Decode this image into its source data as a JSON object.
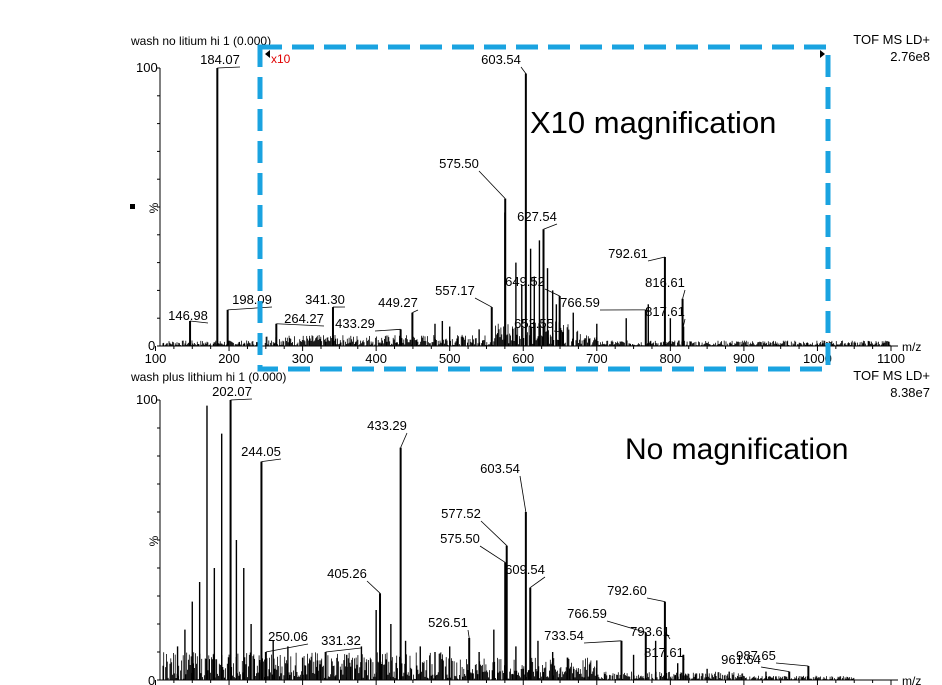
{
  "colors": {
    "spectrum": "#000000",
    "magnify_box": "#1aa3e0",
    "magnify_label": "#e00000"
  },
  "chart_data": [
    {
      "type": "line",
      "title": "wash no litium hi 1 (0.000)",
      "instrument": "TOF MS LD+",
      "intensity": "2.76e8",
      "xlabel": "m/z",
      "ylabel": "%",
      "xlim": [
        100,
        1100
      ],
      "ylim": [
        0,
        100
      ],
      "x_ticks": [
        "100",
        "200",
        "300",
        "400",
        "500",
        "600",
        "700",
        "800",
        "900",
        "1000",
        "1100"
      ],
      "y_ticks": [
        "0",
        "100"
      ],
      "magnification": {
        "range": [
          250,
          1100
        ],
        "factor_label": "x10"
      },
      "annotation": "X10 magnification",
      "peaks": [
        {
          "x": 146.98,
          "y": 9,
          "label": "146.98"
        },
        {
          "x": 184.07,
          "y": 100,
          "label": "184.07"
        },
        {
          "x": 198.09,
          "y": 13,
          "label": "198.09"
        },
        {
          "x": 264.27,
          "y": 8,
          "label": "264.27"
        },
        {
          "x": 341.3,
          "y": 14,
          "label": "341.30"
        },
        {
          "x": 433.29,
          "y": 6,
          "label": "433.29"
        },
        {
          "x": 449.27,
          "y": 12,
          "label": "449.27"
        },
        {
          "x": 557.17,
          "y": 14,
          "label": "557.17"
        },
        {
          "x": 575.5,
          "y": 53,
          "label": "575.50"
        },
        {
          "x": 603.54,
          "y": 98,
          "label": "603.54"
        },
        {
          "x": 627.54,
          "y": 42,
          "label": "627.54"
        },
        {
          "x": 649.52,
          "y": 18,
          "label": "649.52"
        },
        {
          "x": 653.55,
          "y": 5,
          "label": "653.55"
        },
        {
          "x": 766.59,
          "y": 13,
          "label": "766.59"
        },
        {
          "x": 792.61,
          "y": 32,
          "label": "792.61"
        },
        {
          "x": 816.61,
          "y": 17,
          "label": "816.61"
        },
        {
          "x": 817.61,
          "y": 7,
          "label": "817.61"
        }
      ]
    },
    {
      "type": "line",
      "title": "wash plus lithium hi 1 (0.000)",
      "instrument": "TOF MS LD+",
      "intensity": "8.38e7",
      "xlabel": "m/z",
      "ylabel": "%",
      "xlim": [
        100,
        1100
      ],
      "ylim": [
        0,
        100
      ],
      "y_ticks": [
        "0",
        "100"
      ],
      "annotation": "No magnification",
      "peaks": [
        {
          "x": 202.07,
          "y": 100,
          "label": "202.07"
        },
        {
          "x": 244.05,
          "y": 78,
          "label": "244.05"
        },
        {
          "x": 250.06,
          "y": 10,
          "label": "250.06"
        },
        {
          "x": 331.32,
          "y": 10,
          "label": "331.32"
        },
        {
          "x": 405.26,
          "y": 31,
          "label": "405.26"
        },
        {
          "x": 433.29,
          "y": 83,
          "label": "433.29"
        },
        {
          "x": 526.51,
          "y": 15,
          "label": "526.51"
        },
        {
          "x": 575.5,
          "y": 42,
          "label": "575.50"
        },
        {
          "x": 577.52,
          "y": 48,
          "label": "577.52"
        },
        {
          "x": 603.54,
          "y": 60,
          "label": "603.54"
        },
        {
          "x": 609.54,
          "y": 33,
          "label": "609.54"
        },
        {
          "x": 733.54,
          "y": 14,
          "label": "733.54"
        },
        {
          "x": 766.59,
          "y": 17,
          "label": "766.59"
        },
        {
          "x": 792.6,
          "y": 28,
          "label": "792.60"
        },
        {
          "x": 793.61,
          "y": 17,
          "label": "793.61"
        },
        {
          "x": 817.61,
          "y": 9,
          "label": "817.61"
        },
        {
          "x": 961.64,
          "y": 3,
          "label": "961.64"
        },
        {
          "x": 987.65,
          "y": 5,
          "label": "987.65"
        }
      ]
    }
  ]
}
